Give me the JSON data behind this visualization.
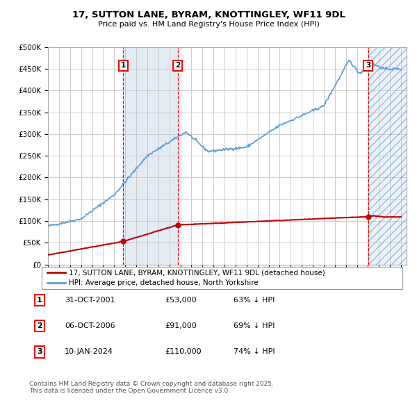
{
  "title": "17, SUTTON LANE, BYRAM, KNOTTINGLEY, WF11 9DL",
  "subtitle": "Price paid vs. HM Land Registry's House Price Index (HPI)",
  "ylabel_ticks": [
    "£0",
    "£50K",
    "£100K",
    "£150K",
    "£200K",
    "£250K",
    "£300K",
    "£350K",
    "£400K",
    "£450K",
    "£500K"
  ],
  "ytick_values": [
    0,
    50000,
    100000,
    150000,
    200000,
    250000,
    300000,
    350000,
    400000,
    450000,
    500000
  ],
  "xlim_start": 1995.0,
  "xlim_end": 2027.5,
  "ylim": [
    0,
    500000
  ],
  "sale_dates_num": [
    2001.83,
    2006.76,
    2024.03
  ],
  "sale_prices": [
    53000,
    91000,
    110000
  ],
  "sale_labels": [
    "1",
    "2",
    "3"
  ],
  "legend_line1": "17, SUTTON LANE, BYRAM, KNOTTINGLEY, WF11 9DL (detached house)",
  "legend_line2": "HPI: Average price, detached house, North Yorkshire",
  "table_entries": [
    [
      "1",
      "31-OCT-2001",
      "£53,000",
      "63% ↓ HPI"
    ],
    [
      "2",
      "06-OCT-2006",
      "£91,000",
      "69% ↓ HPI"
    ],
    [
      "3",
      "10-JAN-2024",
      "£110,000",
      "74% ↓ HPI"
    ]
  ],
  "footer": "Contains HM Land Registry data © Crown copyright and database right 2025.\nThis data is licensed under the Open Government Licence v3.0.",
  "hpi_color": "#5b9bd5",
  "sold_color": "#c00000",
  "background_color": "#ffffff",
  "grid_color": "#cccccc",
  "shade_color": "#dce6f1",
  "hatch_color": "#5b9bd5"
}
